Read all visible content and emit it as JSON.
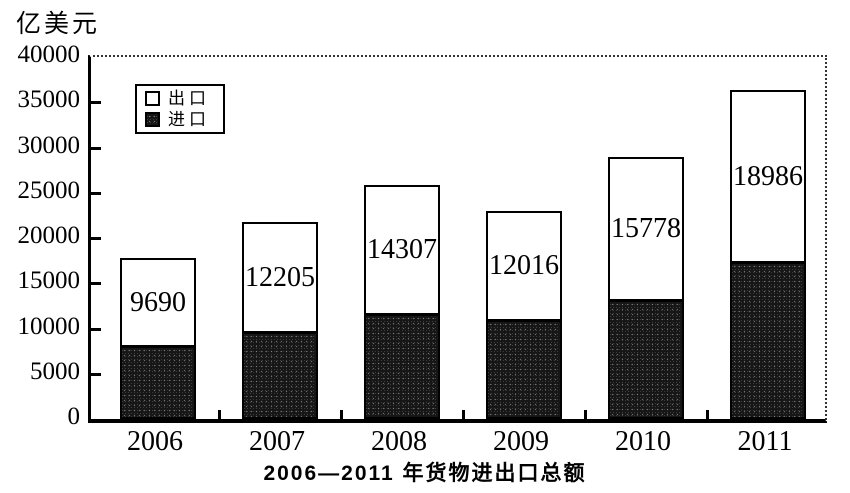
{
  "unit_label": "亿美元",
  "caption": "2006—2011 年货物进出口总额",
  "legend": {
    "export_label": "出口",
    "import_label": "进口"
  },
  "y_axis": {
    "ticks": [
      0,
      5000,
      10000,
      15000,
      20000,
      25000,
      30000,
      35000,
      40000
    ]
  },
  "chart_data": {
    "type": "bar",
    "stacked": true,
    "title": "2006—2011 年货物进出口总额",
    "ylabel": "亿美元",
    "ylim": [
      0,
      40000
    ],
    "grid": false,
    "legend_position": "top-left",
    "categories": [
      "2006",
      "2007",
      "2008",
      "2009",
      "2010",
      "2011"
    ],
    "series": [
      {
        "name": "出口",
        "role": "export",
        "fill": "#ffffff",
        "values": [
          9690,
          12205,
          14307,
          12016,
          15778,
          18986
        ],
        "value_labels_visible": true
      },
      {
        "name": "进口",
        "role": "import",
        "fill": "#161616",
        "values": [
          8100,
          9550,
          11500,
          11000,
          13150,
          17350
        ],
        "value_labels_visible": false,
        "estimated": true
      }
    ]
  },
  "colors": {
    "background": "#ffffff",
    "axis": "#000000",
    "bar_border": "#000000",
    "export_fill": "#ffffff",
    "import_fill": "#161616",
    "text": "#000000"
  }
}
